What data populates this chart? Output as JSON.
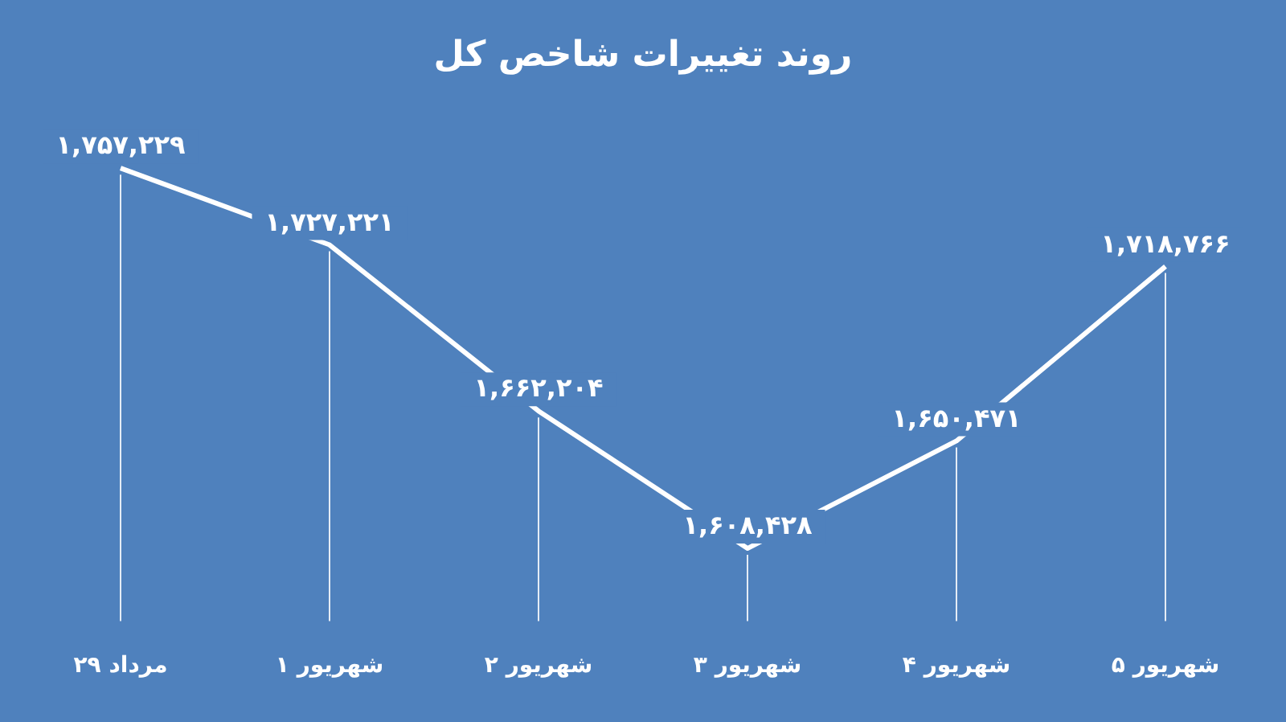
{
  "chart_data": {
    "type": "line",
    "title": "روند تغییرات شاخص کل",
    "categories": [
      "مرداد ۲۹",
      "۱ شهریور",
      "۲ شهریور",
      "۳ شهریور",
      "۴ شهریور",
      "۵ شهریور"
    ],
    "series": [
      {
        "color": "#ffffff",
        "values": [
          1757229,
          1727221,
          1662204,
          1608428,
          1650471,
          1718766
        ],
        "value_labels": [
          "۱,۷۵۷,۲۲۹",
          "۱,۷۲۷,۲۲۱",
          "۱,۶۶۲,۲۰۴",
          "۱,۶۰۸,۴۲۸",
          "۱,۶۵۰,۴۷۱",
          "۱,۷۱۸,۷۶۶"
        ]
      }
    ],
    "tick_labels": "x",
    "grid": "x",
    "line_style": "solid"
  }
}
